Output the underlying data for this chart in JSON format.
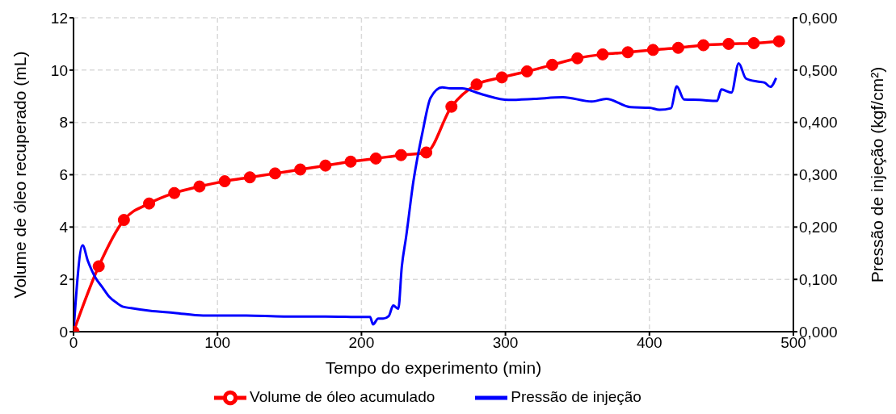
{
  "chart_data": {
    "type": "line",
    "xlabel": "Tempo do experimento (min)",
    "ylabel": "Volume de óleo recuperado (mL)",
    "y2label": "Pressão de injeção (kgf/cm²)",
    "xlim": [
      0,
      500
    ],
    "xticks": [
      0,
      100,
      200,
      300,
      400,
      500
    ],
    "ylim": [
      0,
      12
    ],
    "yticks": [
      0,
      2,
      4,
      6,
      8,
      10,
      12
    ],
    "y2lim": [
      0,
      0.6
    ],
    "y2ticks": [
      {
        "value": 0,
        "label": "0,000"
      },
      {
        "value": 0.1,
        "label": "0,100"
      },
      {
        "value": 0.2,
        "label": "0,200"
      },
      {
        "value": 0.3,
        "label": "0,300"
      },
      {
        "value": 0.4,
        "label": "0,400"
      },
      {
        "value": 0.5,
        "label": "0,500"
      },
      {
        "value": 0.6,
        "label": "0,600"
      }
    ],
    "grid": true,
    "legend": "bottom",
    "line_style": "solid",
    "series": [
      {
        "name": "Volume de óleo acumulado",
        "color": "#ff0000",
        "marker": "circle",
        "x": [
          0,
          17.5,
          35,
          52.5,
          70,
          87.5,
          105,
          122.5,
          140,
          157.5,
          175,
          192.5,
          210,
          227.5,
          245,
          262.5,
          280,
          297.5,
          315,
          332.5,
          350,
          367.5,
          385,
          402.5,
          420,
          437.5,
          455,
          472.5,
          490
        ],
        "values": [
          0,
          2.5,
          4.27,
          4.9,
          5.3,
          5.55,
          5.75,
          5.9,
          6.05,
          6.2,
          6.35,
          6.5,
          6.62,
          6.75,
          6.85,
          8.6,
          9.45,
          9.72,
          9.95,
          10.2,
          10.45,
          10.6,
          10.68,
          10.77,
          10.85,
          10.95,
          11.0,
          11.03,
          11.1
        ]
      },
      {
        "name": "Pressão de injeção",
        "color": "#0000ff",
        "marker": "none",
        "axis": "y2",
        "x": [
          0,
          6.3,
          10,
          15.3,
          20,
          24.7,
          30,
          34,
          40,
          52.7,
          70,
          90,
          120,
          146,
          175,
          202,
          206,
          208,
          211.6,
          215,
          219,
          222,
          225.6,
          228,
          231,
          236,
          242.6,
          248,
          256,
          262,
          270,
          280,
          286,
          302,
          320,
          340,
          360,
          370,
          387,
          400,
          407,
          415,
          419,
          424,
          435,
          447,
          450,
          457,
          462,
          467,
          475,
          480,
          484,
          488
        ],
        "values": [
          0,
          0.165,
          0.135,
          0.103,
          0.085,
          0.067,
          0.055,
          0.048,
          0.045,
          0.04,
          0.036,
          0.031,
          0.031,
          0.029,
          0.029,
          0.028,
          0.028,
          0.014,
          0.025,
          0.025,
          0.03,
          0.05,
          0.044,
          0.124,
          0.181,
          0.286,
          0.384,
          0.447,
          0.467,
          0.465,
          0.465,
          0.457,
          0.452,
          0.443,
          0.445,
          0.448,
          0.44,
          0.445,
          0.429,
          0.428,
          0.424,
          0.427,
          0.469,
          0.444,
          0.443,
          0.441,
          0.463,
          0.457,
          0.513,
          0.484,
          0.478,
          0.476,
          0.468,
          0.485
        ]
      }
    ]
  }
}
